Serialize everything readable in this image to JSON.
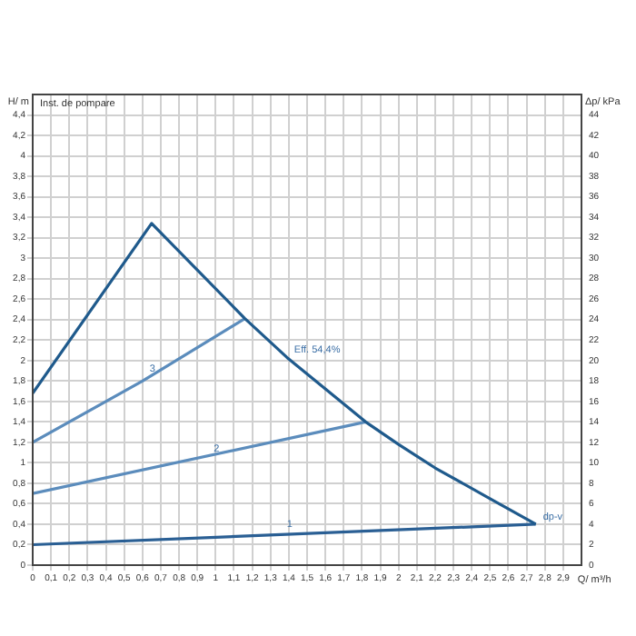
{
  "chart_data": {
    "type": "line",
    "ylabel": "H/ m",
    "y2label": "Δp/ kPa",
    "xlabel": "Q/ m³/h",
    "xlim": [
      0,
      3
    ],
    "ylim": [
      0,
      4.6
    ],
    "y2lim": [
      0,
      46
    ],
    "xticks": [
      0,
      {
        "value": 0.1,
        "label": "0,1"
      },
      {
        "value": 0.2,
        "label": "0,2"
      },
      {
        "value": 0.3,
        "label": "0,3"
      },
      {
        "value": 0.4,
        "label": "0,4"
      },
      {
        "value": 0.5,
        "label": "0,5"
      },
      {
        "value": 0.6,
        "label": "0,6"
      },
      {
        "value": 0.7,
        "label": "0,7"
      },
      {
        "value": 0.8,
        "label": "0,8"
      },
      {
        "value": 0.9,
        "label": "0,9"
      },
      1,
      {
        "value": 1.1,
        "label": "1,1"
      },
      {
        "value": 1.2,
        "label": "1,2"
      },
      {
        "value": 1.3,
        "label": "1,3"
      },
      {
        "value": 1.4,
        "label": "1,4"
      },
      {
        "value": 1.5,
        "label": "1,5"
      },
      {
        "value": 1.6,
        "label": "1,6"
      },
      {
        "value": 1.7,
        "label": "1,7"
      },
      {
        "value": 1.8,
        "label": "1,8"
      },
      {
        "value": 1.9,
        "label": "1,9"
      },
      2,
      {
        "value": 2.1,
        "label": "2,1"
      },
      {
        "value": 2.2,
        "label": "2,2"
      },
      {
        "value": 2.3,
        "label": "2,3"
      },
      {
        "value": 2.4,
        "label": "2,4"
      },
      {
        "value": 2.5,
        "label": "2,5"
      },
      {
        "value": 2.6,
        "label": "2,6"
      },
      {
        "value": 2.7,
        "label": "2,7"
      },
      {
        "value": 2.8,
        "label": "2,8"
      },
      {
        "value": 2.9,
        "label": "2,9"
      }
    ],
    "yticks": [
      0,
      {
        "value": 0.2,
        "label": "0,2"
      },
      {
        "value": 0.4,
        "label": "0,4"
      },
      {
        "value": 0.6,
        "label": "0,6"
      },
      {
        "value": 0.8,
        "label": "0,8"
      },
      1,
      {
        "value": 1.2,
        "label": "1,2"
      },
      {
        "value": 1.4,
        "label": "1,4"
      },
      {
        "value": 1.6,
        "label": "1,6"
      },
      {
        "value": 1.8,
        "label": "1,8"
      },
      2,
      {
        "value": 2.2,
        "label": "2,2"
      },
      {
        "value": 2.4,
        "label": "2,4"
      },
      {
        "value": 2.6,
        "label": "2,6"
      },
      {
        "value": 2.8,
        "label": "2,8"
      },
      3,
      {
        "value": 3.2,
        "label": "3,2"
      },
      {
        "value": 3.4,
        "label": "3,4"
      },
      {
        "value": 3.6,
        "label": "3,6"
      },
      {
        "value": 3.8,
        "label": "3,8"
      },
      4,
      {
        "value": 4.2,
        "label": "4,2"
      },
      {
        "value": 4.4,
        "label": "4,4"
      }
    ],
    "y2ticks": [
      0,
      2,
      4,
      6,
      8,
      10,
      12,
      14,
      16,
      18,
      20,
      22,
      24,
      26,
      28,
      30,
      32,
      34,
      36,
      38,
      40,
      42,
      44
    ],
    "grid": true,
    "legend": false,
    "marker": "none",
    "line_style": "solid",
    "series": [
      {
        "color": "#1f5a8c",
        "x": [
          0,
          0.65,
          1.16,
          1.39,
          1.82,
          2.0,
          2.2,
          2.5,
          2.75
        ],
        "values": [
          1.68,
          3.34,
          2.41,
          2.03,
          1.4,
          1.18,
          0.95,
          0.65,
          0.4
        ]
      },
      {
        "color": "#2a5f94",
        "x": [
          0,
          2.75
        ],
        "values": [
          0.2,
          0.4
        ]
      },
      {
        "color": "#5b8cbc",
        "x": [
          0,
          1.82
        ],
        "values": [
          0.7,
          1.4
        ]
      },
      {
        "color": "#5b8cbc",
        "x": [
          0,
          0.6,
          1.16
        ],
        "values": [
          1.2,
          1.8,
          2.41
        ]
      }
    ],
    "annotations": [
      "Inst. de pompare",
      {
        "text": "1",
        "x": 1.35,
        "y": 0.33
      },
      {
        "text": "2",
        "x": 0.95,
        "y": 1.07
      },
      {
        "text": "3",
        "x": 0.6,
        "y": 1.85
      },
      {
        "text": "Eff. 54,4%",
        "x": 1.39,
        "y": 2.03
      },
      {
        "text": "dp-v",
        "x": 2.75,
        "y": 0.4
      }
    ]
  }
}
